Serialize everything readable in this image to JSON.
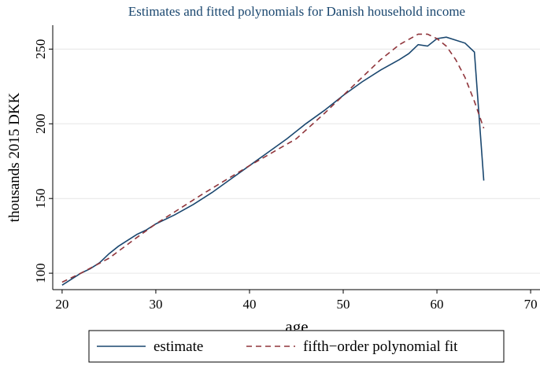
{
  "chart_data": {
    "type": "line",
    "title": "Estimates and fitted polynomials for Danish household income",
    "x_label": "age",
    "y_label": "thousands 2015 DKK",
    "xlim": [
      19,
      71
    ],
    "ylim": [
      89,
      266
    ],
    "xticks": [
      20,
      30,
      40,
      50,
      60,
      70
    ],
    "yticks": [
      100,
      150,
      200,
      250
    ],
    "grid": true,
    "legend": "bottom",
    "series": [
      {
        "name": "estimate",
        "color": "#1a476f",
        "dash": "solid",
        "x": [
          20,
          21,
          22,
          23,
          24,
          25,
          26,
          27,
          28,
          29,
          30,
          32,
          34,
          36,
          38,
          40,
          42,
          44,
          46,
          48,
          50,
          52,
          54,
          56,
          57,
          58,
          59,
          60,
          61,
          62,
          63,
          64,
          65
        ],
        "values": [
          92,
          96,
          100,
          103,
          107,
          113,
          118,
          122,
          126,
          129,
          133,
          139,
          146,
          154,
          163,
          172,
          181,
          190,
          200,
          209,
          219,
          228,
          236,
          243,
          247,
          253,
          252,
          257,
          258,
          256,
          254,
          248,
          162
        ]
      },
      {
        "name": "fifth−order polynomial fit",
        "color": "#90353b",
        "dash": "dashed",
        "x": [
          20,
          22,
          25,
          28,
          30,
          35,
          40,
          45,
          48,
          50,
          52,
          54,
          56,
          58,
          59,
          60,
          61,
          62,
          63,
          64,
          65
        ],
        "values": [
          94,
          100,
          110,
          124,
          133,
          153,
          172,
          190,
          207,
          219,
          231,
          243,
          253,
          260,
          260,
          257,
          252,
          243,
          231,
          215,
          197
        ]
      }
    ]
  }
}
